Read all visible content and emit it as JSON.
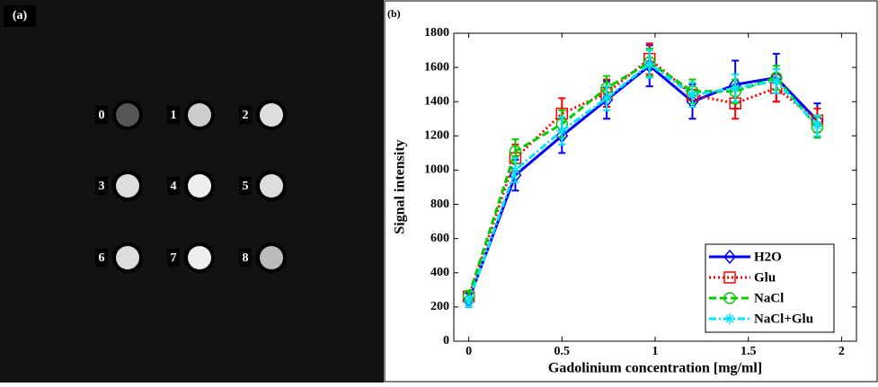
{
  "panel_a": {
    "label": "(a)",
    "sample_labels": [
      "0",
      "1",
      "2",
      "3",
      "4",
      "5",
      "6",
      "7",
      "8"
    ]
  },
  "chart_data": {
    "type": "line",
    "panel_label": "(b)",
    "x_label": "Gadolinium concentration [mg/ml]",
    "y_label": "Signal intensity",
    "x": [
      0,
      0.25,
      0.5,
      0.74,
      0.97,
      1.2,
      1.43,
      1.65,
      1.87
    ],
    "series": [
      {
        "name": "H2O",
        "color": "#0000ff",
        "line_style": "solid",
        "marker": "diamond",
        "values": [
          240,
          970,
          1200,
          1410,
          1610,
          1400,
          1500,
          1540,
          1290
        ],
        "errors": [
          40,
          90,
          100,
          110,
          120,
          100,
          140,
          140,
          100
        ]
      },
      {
        "name": "Glu",
        "color": "#ff0000",
        "line_style": "dotted",
        "marker": "square",
        "values": [
          260,
          1070,
          1330,
          1450,
          1650,
          1440,
          1390,
          1480,
          1290
        ],
        "errors": [
          30,
          80,
          90,
          80,
          90,
          70,
          90,
          80,
          70
        ]
      },
      {
        "name": "NaCl",
        "color": "#00cc00",
        "line_style": "dashed",
        "marker": "circle",
        "values": [
          265,
          1110,
          1270,
          1480,
          1630,
          1460,
          1460,
          1540,
          1250
        ],
        "errors": [
          30,
          70,
          80,
          70,
          80,
          70,
          70,
          70,
          60
        ]
      },
      {
        "name": "NaCl+Glu",
        "color": "#00e5ff",
        "line_style": "dashdot",
        "marker": "asterisk",
        "values": [
          230,
          1000,
          1230,
          1420,
          1620,
          1440,
          1480,
          1520,
          1260
        ],
        "errors": [
          30,
          70,
          80,
          70,
          80,
          70,
          80,
          70,
          60
        ]
      }
    ],
    "xlim": [
      -0.08,
      2.08
    ],
    "ylim": [
      0,
      1800
    ],
    "xticks": [
      0,
      0.5,
      1,
      1.5,
      2
    ],
    "yticks": [
      0,
      200,
      400,
      600,
      800,
      1000,
      1200,
      1400,
      1600,
      1800
    ],
    "legend": "lower right",
    "grid": false
  }
}
